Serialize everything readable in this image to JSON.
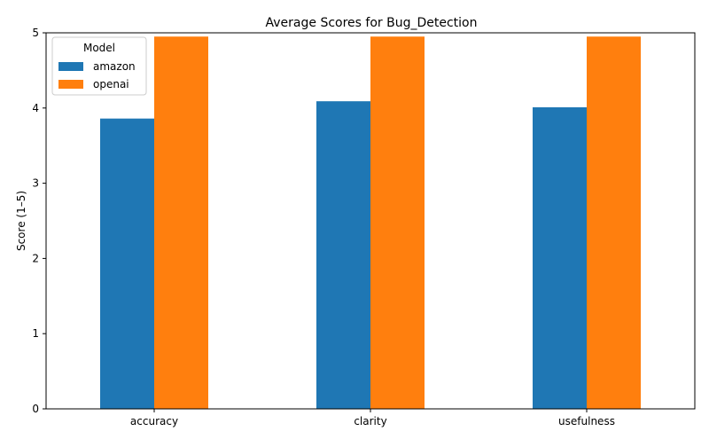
{
  "chart_data": {
    "type": "bar",
    "title": "Average Scores for Bug_Detection",
    "xlabel": "",
    "ylabel": "Score (1–5)",
    "categories": [
      "accuracy",
      "clarity",
      "usefulness"
    ],
    "series": [
      {
        "name": "amazon",
        "color": "#1f77b4",
        "values": [
          3.86,
          4.09,
          4.01
        ]
      },
      {
        "name": "openai",
        "color": "#ff7f0e",
        "values": [
          4.95,
          4.95,
          4.95
        ]
      }
    ],
    "ylim": [
      0,
      5
    ],
    "yticks": [
      "0",
      "1",
      "2",
      "3",
      "4",
      "5"
    ],
    "grid": false,
    "legend": {
      "title": "Model",
      "placement": "top-left"
    }
  }
}
